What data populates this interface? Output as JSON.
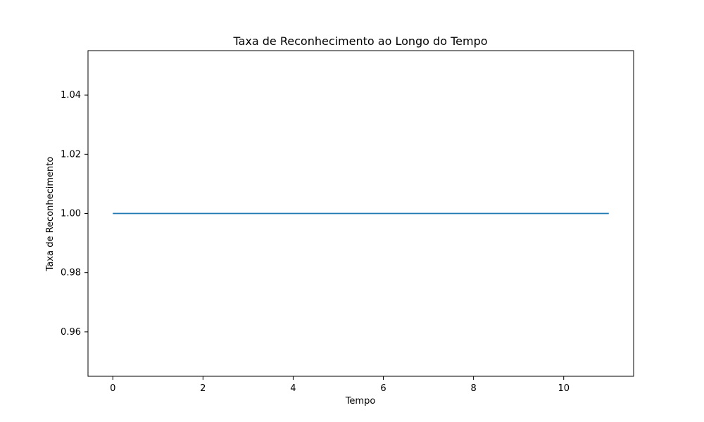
{
  "chart_data": {
    "type": "line",
    "title": "Taxa de Reconhecimento ao Longo do Tempo",
    "xlabel": "Tempo",
    "ylabel": "Taxa de Reconhecimento",
    "xlim": [
      -0.55,
      11.55
    ],
    "ylim": [
      0.945,
      1.055
    ],
    "x_ticks": [
      0,
      2,
      4,
      6,
      8,
      10
    ],
    "x_tick_labels": [
      "0",
      "2",
      "4",
      "6",
      "8",
      "10"
    ],
    "y_ticks": [
      0.96,
      0.98,
      1.0,
      1.02,
      1.04
    ],
    "y_tick_labels": [
      "0.96",
      "0.98",
      "1.00",
      "1.02",
      "1.04"
    ],
    "grid": false,
    "legend": false,
    "x": [
      0,
      1,
      2,
      3,
      4,
      5,
      6,
      7,
      8,
      9,
      10,
      11
    ],
    "series": [
      {
        "color": "#1f77b4",
        "values": [
          1.0,
          1.0,
          1.0,
          1.0,
          1.0,
          1.0,
          1.0,
          1.0,
          1.0,
          1.0,
          1.0,
          1.0
        ]
      }
    ]
  }
}
